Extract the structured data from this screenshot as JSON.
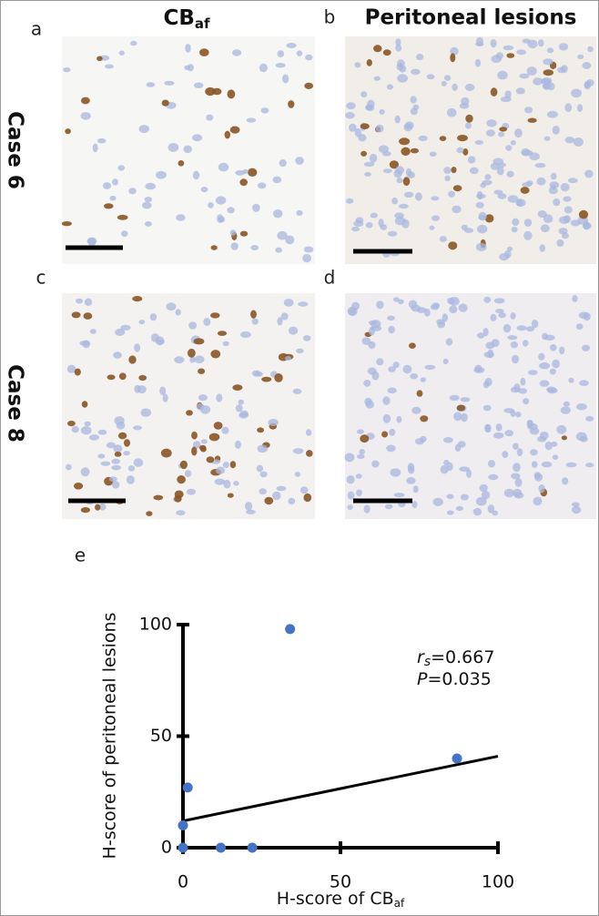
{
  "panel_labels": [
    "a",
    "b",
    "c",
    "d",
    "e"
  ],
  "column_headers": [
    {
      "text": "CB",
      "sub": "af"
    },
    {
      "text": "Peritoneal lesions"
    }
  ],
  "row_labels": [
    "Case 6",
    "Case 8"
  ],
  "chart_data": {
    "type": "scatter",
    "xlabel": {
      "text": "H-score of CB",
      "sub": "af"
    },
    "ylabel": "H-score of peritoneal lesions",
    "x": [
      0,
      0,
      12,
      22,
      1.5,
      34,
      87
    ],
    "values": [
      10,
      0,
      0,
      0,
      27,
      98,
      40
    ],
    "color": "#4472c4",
    "xlim": [
      0,
      100
    ],
    "ylim": [
      0,
      100
    ],
    "xticks": [
      0,
      50,
      100
    ],
    "yticks": [
      0,
      50,
      100
    ],
    "fit_line": {
      "x": [
        0,
        100
      ],
      "y": [
        12,
        41
      ]
    },
    "annotations": [
      {
        "symbol": "r",
        "sub": "s",
        "text": "=0.667"
      },
      {
        "symbol": "P",
        "text": "=0.035"
      }
    ]
  }
}
